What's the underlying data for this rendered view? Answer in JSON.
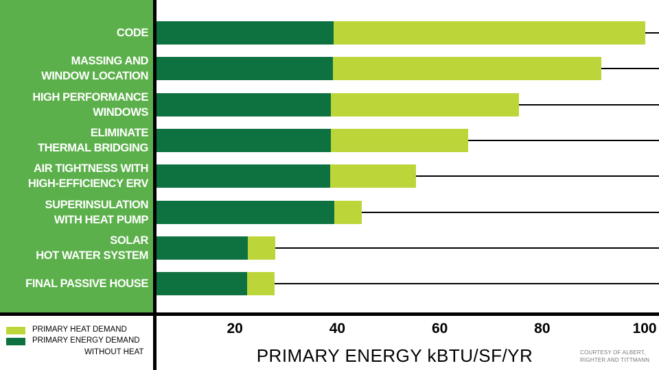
{
  "chart_data": {
    "type": "bar",
    "orientation": "horizontal",
    "stacked": true,
    "categories": [
      "CODE",
      "MASSING AND\nWINDOW LOCATION",
      "HIGH PERFORMANCE\nWINDOWS",
      "ELIMINATE\nTHERMAL BRIDGING",
      "AIR TIGHTNESS WITH\nHIGH-EFFICIENCY ERV",
      "SUPERINSULATION\nWITH HEAT PUMP",
      "SOLAR\nHOT WATER SYSTEM",
      "FINAL PASSIVE HOUSE"
    ],
    "series": [
      {
        "name": "PRIMARY ENERGY DEMAND WITHOUT HEAT",
        "color": "#0e7240",
        "values": [
          39.3,
          39.1,
          38.8,
          38.8,
          38.6,
          39.4,
          22.5,
          22.4
        ]
      },
      {
        "name": "PRIMARY HEAT DEMAND",
        "color": "#bcd63a",
        "values": [
          60.8,
          52.5,
          36.7,
          26.8,
          16.7,
          5.4,
          5.4,
          5.4
        ]
      }
    ],
    "xlim": [
      4.7,
      102.8
    ],
    "xticks": [
      "20",
      "40",
      "60",
      "80",
      "100"
    ],
    "xlabel": "PRIMARY ENERGY kBTU/SF/YR",
    "ylabel": "",
    "title": "",
    "legend": {
      "position": "bottom-left",
      "items": [
        {
          "label": "PRIMARY HEAT DEMAND",
          "color": "#bcd63a"
        },
        {
          "label_line1": "PRIMARY ENERGY DEMAND",
          "label_line2": "WITHOUT HEAT",
          "color": "#0e7240"
        }
      ]
    },
    "credit_line1": "COURTESY OF ALBERT,",
    "credit_line2": "RIGHTER AND TITTMANN",
    "grid": false
  }
}
